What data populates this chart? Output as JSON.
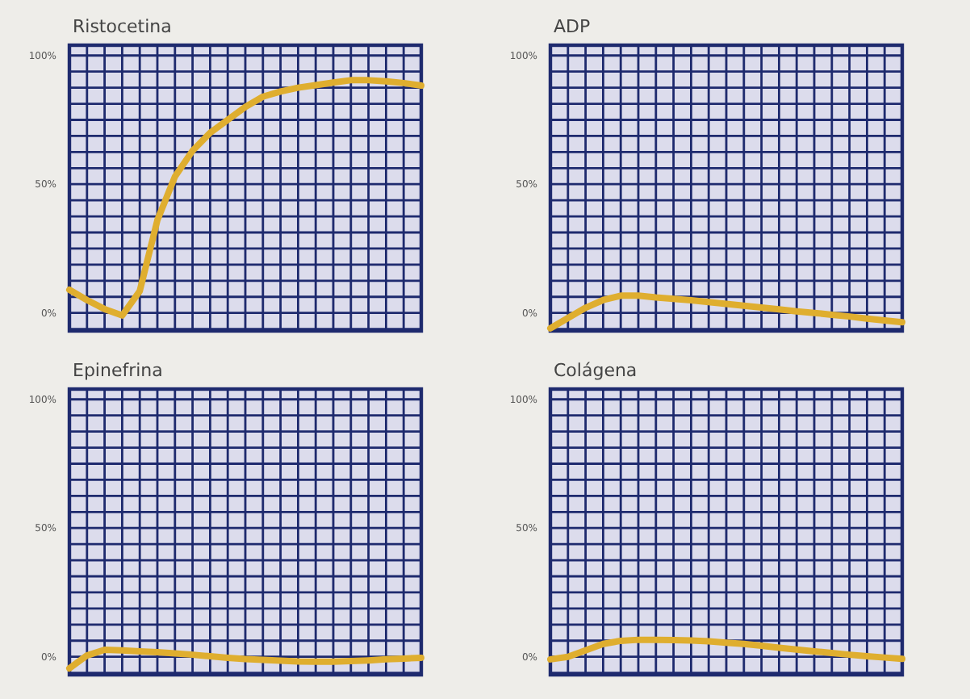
{
  "chart_data": [
    {
      "type": "line",
      "title": "Ristocetina",
      "categories": [
        null,
        null,
        null,
        null,
        null,
        null,
        null,
        null,
        null,
        null,
        null,
        null,
        null,
        null,
        null,
        null,
        null,
        null,
        null,
        null,
        null
      ],
      "series": [
        {
          "color": "#dfae2f",
          "values": [
            9,
            5,
            1.5,
            -1,
            8.5,
            36,
            53,
            63,
            70,
            75,
            80,
            84,
            86,
            87.5,
            88.5,
            89.5,
            90.4,
            90.4,
            90,
            89.3,
            88.3
          ]
        }
      ],
      "ylim": [
        -7,
        104
      ],
      "yticks": [
        {
          "value": -6.25,
          "label": null
        },
        {
          "value": 0,
          "label": "0%"
        },
        {
          "value": 6.25,
          "label": null
        },
        {
          "value": 12.5,
          "label": null
        },
        {
          "value": 18.75,
          "label": null
        },
        {
          "value": 25,
          "label": null
        },
        {
          "value": 31.25,
          "label": null
        },
        {
          "value": 37.5,
          "label": null
        },
        {
          "value": 43.75,
          "label": null
        },
        {
          "value": 50,
          "label": "50%"
        },
        {
          "value": 56.25,
          "label": null
        },
        {
          "value": 62.5,
          "label": null
        },
        {
          "value": 68.75,
          "label": null
        },
        {
          "value": 75,
          "label": null
        },
        {
          "value": 81.25,
          "label": null
        },
        {
          "value": 87.5,
          "label": null
        },
        {
          "value": 93.75,
          "label": null
        },
        {
          "value": 100,
          "label": "100%"
        }
      ],
      "grid": true
    },
    {
      "type": "line",
      "title": "ADP",
      "categories": [
        null,
        null,
        null,
        null,
        null,
        null,
        null,
        null,
        null,
        null,
        null,
        null,
        null,
        null,
        null,
        null,
        null,
        null,
        null,
        null,
        null
      ],
      "series": [
        {
          "color": "#dfae2f",
          "values": [
            -6,
            -2,
            2,
            5,
            6.7,
            6.7,
            6,
            5.5,
            4.9,
            4.2,
            3.5,
            2.8,
            2.1,
            1.4,
            0.6,
            0,
            -0.7,
            -1.4,
            -2.2,
            -2.9,
            -3.6
          ]
        }
      ],
      "ylim": [
        -7,
        104
      ],
      "yticks": [
        {
          "value": -6.25,
          "label": null
        },
        {
          "value": 0,
          "label": "0%"
        },
        {
          "value": 6.25,
          "label": null
        },
        {
          "value": 12.5,
          "label": null
        },
        {
          "value": 18.75,
          "label": null
        },
        {
          "value": 25,
          "label": null
        },
        {
          "value": 31.25,
          "label": null
        },
        {
          "value": 37.5,
          "label": null
        },
        {
          "value": 43.75,
          "label": null
        },
        {
          "value": 50,
          "label": "50%"
        },
        {
          "value": 56.25,
          "label": null
        },
        {
          "value": 62.5,
          "label": null
        },
        {
          "value": 68.75,
          "label": null
        },
        {
          "value": 75,
          "label": null
        },
        {
          "value": 81.25,
          "label": null
        },
        {
          "value": 87.5,
          "label": null
        },
        {
          "value": 93.75,
          "label": null
        },
        {
          "value": 100,
          "label": "100%"
        }
      ],
      "grid": true
    },
    {
      "type": "line",
      "title": "Epinefrina",
      "categories": [
        null,
        null,
        null,
        null,
        null,
        null,
        null,
        null,
        null,
        null,
        null,
        null,
        null,
        null,
        null,
        null,
        null,
        null,
        null,
        null,
        null
      ],
      "series": [
        {
          "color": "#dfae2f",
          "values": [
            -4.5,
            0.5,
            2.7,
            2.5,
            2.1,
            1.8,
            1.3,
            0.8,
            0.2,
            -0.4,
            -0.9,
            -1.2,
            -1.5,
            -1.8,
            -1.9,
            -1.9,
            -1.7,
            -1.4,
            -1,
            -0.7,
            -0.4
          ]
        }
      ],
      "ylim": [
        -7,
        104
      ],
      "yticks": [
        {
          "value": -6.25,
          "label": null
        },
        {
          "value": 0,
          "label": "0%"
        },
        {
          "value": 6.25,
          "label": null
        },
        {
          "value": 12.5,
          "label": null
        },
        {
          "value": 18.75,
          "label": null
        },
        {
          "value": 25,
          "label": null
        },
        {
          "value": 31.25,
          "label": null
        },
        {
          "value": 37.5,
          "label": null
        },
        {
          "value": 43.75,
          "label": null
        },
        {
          "value": 50,
          "label": "50%"
        },
        {
          "value": 56.25,
          "label": null
        },
        {
          "value": 62.5,
          "label": null
        },
        {
          "value": 68.75,
          "label": null
        },
        {
          "value": 75,
          "label": null
        },
        {
          "value": 81.25,
          "label": null
        },
        {
          "value": 87.5,
          "label": null
        },
        {
          "value": 93.75,
          "label": null
        },
        {
          "value": 100,
          "label": "100%"
        }
      ],
      "grid": true
    },
    {
      "type": "line",
      "title": "Colágena",
      "categories": [
        null,
        null,
        null,
        null,
        null,
        null,
        null,
        null,
        null,
        null,
        null,
        null,
        null,
        null,
        null,
        null,
        null,
        null,
        null,
        null,
        null
      ],
      "series": [
        {
          "color": "#dfae2f",
          "values": [
            -1,
            0,
            2.5,
            5,
            6.2,
            6.6,
            6.6,
            6.5,
            6.3,
            6,
            5.5,
            5,
            4.3,
            3.5,
            2.8,
            2.1,
            1.5,
            0.8,
            0.2,
            -0.3,
            -0.8
          ]
        }
      ],
      "ylim": [
        -7,
        104
      ],
      "yticks": [
        {
          "value": -6.25,
          "label": null
        },
        {
          "value": 0,
          "label": "0%"
        },
        {
          "value": 6.25,
          "label": null
        },
        {
          "value": 12.5,
          "label": null
        },
        {
          "value": 18.75,
          "label": null
        },
        {
          "value": 25,
          "label": null
        },
        {
          "value": 31.25,
          "label": null
        },
        {
          "value": 37.5,
          "label": null
        },
        {
          "value": 43.75,
          "label": null
        },
        {
          "value": 50,
          "label": "50%"
        },
        {
          "value": 56.25,
          "label": null
        },
        {
          "value": 62.5,
          "label": null
        },
        {
          "value": 68.75,
          "label": null
        },
        {
          "value": 75,
          "label": null
        },
        {
          "value": 81.25,
          "label": null
        },
        {
          "value": 87.5,
          "label": null
        },
        {
          "value": 93.75,
          "label": null
        },
        {
          "value": 100,
          "label": "100%"
        }
      ],
      "grid": true
    }
  ]
}
